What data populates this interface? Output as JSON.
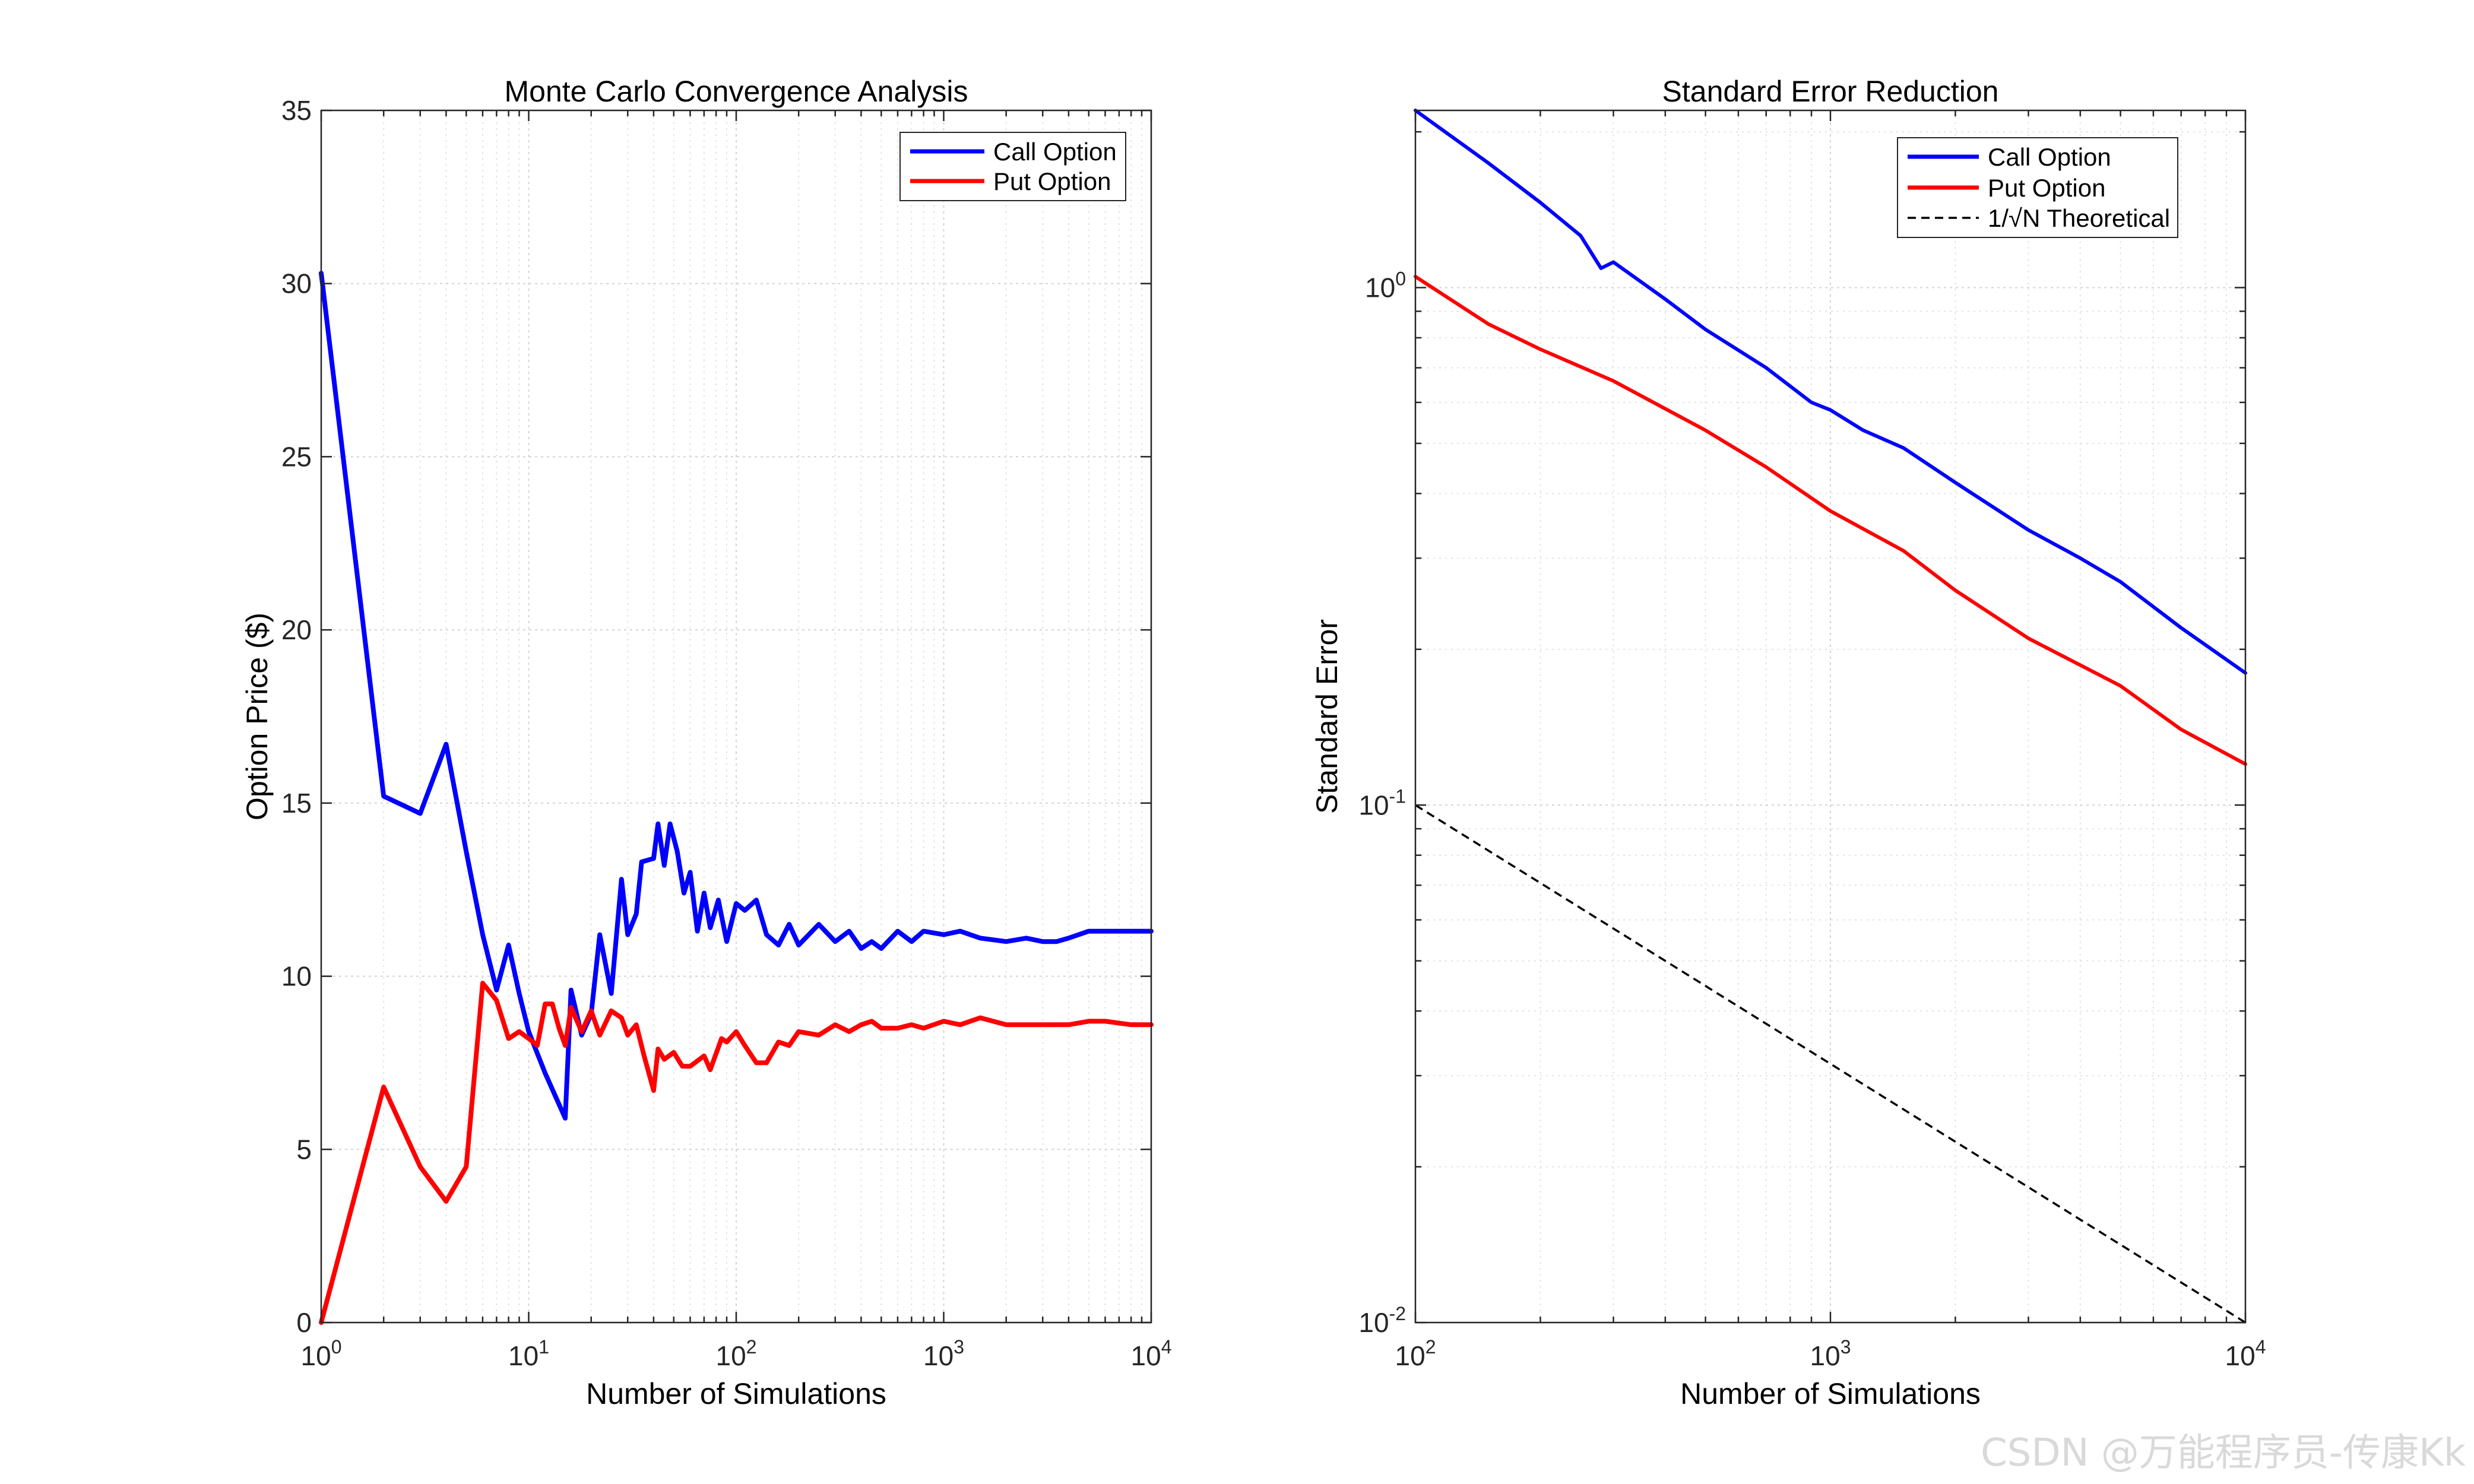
{
  "chart_data": [
    {
      "type": "line",
      "title": "Monte Carlo Convergence Analysis",
      "xlabel": "Number of Simulations",
      "ylabel": "Option Price ($)",
      "xscale": "log",
      "xlim": [
        1,
        10000
      ],
      "ylim": [
        0,
        35
      ],
      "yticks": [
        0,
        5,
        10,
        15,
        20,
        25,
        30,
        35
      ],
      "xtick_exponents": [
        "0",
        "1",
        "2",
        "3",
        "4"
      ],
      "grid": true,
      "legend_position": "top-right",
      "series": [
        {
          "name": "Call Option",
          "color": "#0000ff",
          "points": [
            [
              1,
              30.3
            ],
            [
              2,
              15.2
            ],
            [
              3,
              14.7
            ],
            [
              4,
              16.7
            ],
            [
              5,
              13.6
            ],
            [
              6,
              11.2
            ],
            [
              7,
              9.6
            ],
            [
              8,
              10.9
            ],
            [
              9,
              9.5
            ],
            [
              10,
              8.4
            ],
            [
              12,
              7.2
            ],
            [
              15,
              5.9
            ],
            [
              16,
              9.6
            ],
            [
              18,
              8.3
            ],
            [
              20,
              8.9
            ],
            [
              22,
              11.2
            ],
            [
              25,
              9.5
            ],
            [
              28,
              12.8
            ],
            [
              30,
              11.2
            ],
            [
              33,
              11.8
            ],
            [
              35,
              13.3
            ],
            [
              40,
              13.4
            ],
            [
              42,
              14.4
            ],
            [
              45,
              13.2
            ],
            [
              48,
              14.4
            ],
            [
              52,
              13.6
            ],
            [
              56,
              12.4
            ],
            [
              60,
              13.0
            ],
            [
              65,
              11.3
            ],
            [
              70,
              12.4
            ],
            [
              75,
              11.4
            ],
            [
              82,
              12.2
            ],
            [
              90,
              11.0
            ],
            [
              100,
              12.1
            ],
            [
              110,
              11.9
            ],
            [
              125,
              12.2
            ],
            [
              140,
              11.2
            ],
            [
              160,
              10.9
            ],
            [
              180,
              11.5
            ],
            [
              200,
              10.9
            ],
            [
              250,
              11.5
            ],
            [
              300,
              11.0
            ],
            [
              350,
              11.3
            ],
            [
              400,
              10.8
            ],
            [
              450,
              11.0
            ],
            [
              500,
              10.8
            ],
            [
              600,
              11.3
            ],
            [
              700,
              11.0
            ],
            [
              800,
              11.3
            ],
            [
              1000,
              11.2
            ],
            [
              1200,
              11.3
            ],
            [
              1500,
              11.1
            ],
            [
              2000,
              11.0
            ],
            [
              2500,
              11.1
            ],
            [
              3000,
              11.0
            ],
            [
              3500,
              11.0
            ],
            [
              4000,
              11.1
            ],
            [
              5000,
              11.3
            ],
            [
              6000,
              11.3
            ],
            [
              8000,
              11.3
            ],
            [
              10000,
              11.3
            ]
          ]
        },
        {
          "name": "Put Option",
          "color": "#ff0000",
          "points": [
            [
              1,
              0.0
            ],
            [
              2,
              6.8
            ],
            [
              3,
              4.5
            ],
            [
              4,
              3.5
            ],
            [
              5,
              4.5
            ],
            [
              6,
              9.8
            ],
            [
              7,
              9.3
            ],
            [
              8,
              8.2
            ],
            [
              9,
              8.4
            ],
            [
              10,
              8.2
            ],
            [
              11,
              8.0
            ],
            [
              12,
              9.2
            ],
            [
              13,
              9.2
            ],
            [
              14,
              8.5
            ],
            [
              15,
              8.0
            ],
            [
              16,
              9.1
            ],
            [
              18,
              8.4
            ],
            [
              20,
              9.0
            ],
            [
              22,
              8.3
            ],
            [
              25,
              9.0
            ],
            [
              28,
              8.8
            ],
            [
              30,
              8.3
            ],
            [
              33,
              8.6
            ],
            [
              36,
              7.7
            ],
            [
              40,
              6.7
            ],
            [
              42,
              7.9
            ],
            [
              45,
              7.6
            ],
            [
              50,
              7.8
            ],
            [
              55,
              7.4
            ],
            [
              60,
              7.4
            ],
            [
              70,
              7.7
            ],
            [
              75,
              7.3
            ],
            [
              85,
              8.2
            ],
            [
              90,
              8.1
            ],
            [
              100,
              8.4
            ],
            [
              110,
              8.0
            ],
            [
              125,
              7.5
            ],
            [
              140,
              7.5
            ],
            [
              160,
              8.1
            ],
            [
              180,
              8.0
            ],
            [
              200,
              8.4
            ],
            [
              250,
              8.3
            ],
            [
              300,
              8.6
            ],
            [
              350,
              8.4
            ],
            [
              400,
              8.6
            ],
            [
              450,
              8.7
            ],
            [
              500,
              8.5
            ],
            [
              600,
              8.5
            ],
            [
              700,
              8.6
            ],
            [
              800,
              8.5
            ],
            [
              1000,
              8.7
            ],
            [
              1200,
              8.6
            ],
            [
              1500,
              8.8
            ],
            [
              2000,
              8.6
            ],
            [
              3000,
              8.6
            ],
            [
              4000,
              8.6
            ],
            [
              5000,
              8.7
            ],
            [
              6000,
              8.7
            ],
            [
              8000,
              8.6
            ],
            [
              10000,
              8.6
            ]
          ]
        }
      ]
    },
    {
      "type": "line",
      "title": "Standard Error Reduction",
      "xlabel": "Number of Simulations",
      "ylabel": "Standard Error",
      "xscale": "log",
      "yscale": "log",
      "xlim": [
        100,
        10000
      ],
      "ylim": [
        0.01,
        2.2
      ],
      "xtick_exponents": [
        "2",
        "3",
        "4"
      ],
      "ytick_exponents": [
        "-2",
        "-1",
        "0"
      ],
      "grid": true,
      "legend_position": "top-right",
      "series": [
        {
          "name": "Call Option",
          "color": "#0000ff",
          "points": [
            [
              100,
              2.2
            ],
            [
              150,
              1.74
            ],
            [
              200,
              1.46
            ],
            [
              250,
              1.26
            ],
            [
              280,
              1.09
            ],
            [
              300,
              1.12
            ],
            [
              400,
              0.95
            ],
            [
              500,
              0.83
            ],
            [
              700,
              0.7
            ],
            [
              900,
              0.6
            ],
            [
              1000,
              0.58
            ],
            [
              1200,
              0.53
            ],
            [
              1500,
              0.49
            ],
            [
              2000,
              0.42
            ],
            [
              3000,
              0.34
            ],
            [
              4000,
              0.3
            ],
            [
              5000,
              0.27
            ],
            [
              7000,
              0.22
            ],
            [
              10000,
              0.18
            ]
          ]
        },
        {
          "name": "Put Option",
          "color": "#ff0000",
          "points": [
            [
              100,
              1.05
            ],
            [
              150,
              0.85
            ],
            [
              200,
              0.76
            ],
            [
              300,
              0.66
            ],
            [
              500,
              0.53
            ],
            [
              700,
              0.45
            ],
            [
              1000,
              0.37
            ],
            [
              1500,
              0.31
            ],
            [
              2000,
              0.26
            ],
            [
              3000,
              0.21
            ],
            [
              5000,
              0.17
            ],
            [
              7000,
              0.14
            ],
            [
              10000,
              0.12
            ]
          ]
        },
        {
          "name": "1/√N Theoretical",
          "color": "#000000",
          "dash": true,
          "points": [
            [
              100,
              0.1
            ],
            [
              10000,
              0.01
            ]
          ]
        }
      ]
    }
  ],
  "tick_base": "10",
  "watermark": "CSDN @万能程序员-传康Kk"
}
